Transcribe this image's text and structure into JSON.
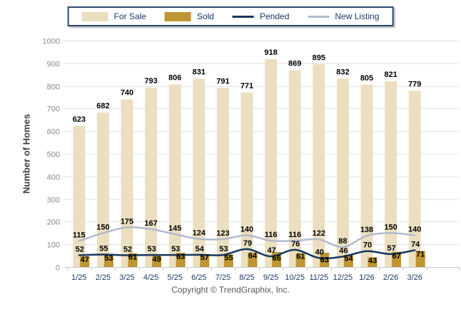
{
  "page": {
    "copyright": "Copyright © TrendGraphix, Inc."
  },
  "colors": {
    "for_sale": "#EBDFC0",
    "sold": "#BD9533",
    "pended": "#17375E",
    "new_listing": "#B2BACA",
    "legend_border": "#2B4A72",
    "legend_text": "#17375E",
    "grid": "#E3E3E3",
    "axis_line": "#C9C9C9",
    "x_tick_text": "#1F3864",
    "y_tick_text": "#8A8A8A"
  },
  "legend": {
    "items": [
      {
        "label": "For Sale",
        "kind": "bar",
        "color": "#EBDFC0"
      },
      {
        "label": "Sold",
        "kind": "bar",
        "color": "#BD9533"
      },
      {
        "label": "Pended",
        "kind": "line",
        "color": "#17375E"
      },
      {
        "label": "New Listing",
        "kind": "line",
        "color": "#B2BACA"
      }
    ]
  },
  "chart_data": {
    "type": "bar",
    "subtype": "grouped bars with smoothed overlay lines",
    "title": "",
    "xlabel": "",
    "ylabel": "Number of Homes",
    "ylim": [
      0,
      1000
    ],
    "ytick_step": 100,
    "grid": true,
    "legend_position": "top-center",
    "categories": [
      "1/25",
      "2/25",
      "3/25",
      "4/25",
      "5/25",
      "6/25",
      "7/25",
      "8/25",
      "9/25",
      "10/25",
      "11/25",
      "12/25",
      "1/26",
      "2/26",
      "3/26"
    ],
    "series": [
      {
        "name": "For Sale",
        "type": "bar",
        "color": "#EBDFC0",
        "values": [
          623,
          682,
          740,
          793,
          806,
          831,
          791,
          771,
          918,
          869,
          895,
          832,
          805,
          821,
          779
        ]
      },
      {
        "name": "Sold",
        "type": "bar",
        "color": "#BD9533",
        "values": [
          47,
          53,
          61,
          49,
          63,
          57,
          55,
          64,
          66,
          61,
          63,
          54,
          43,
          67,
          71
        ]
      },
      {
        "name": "Pended",
        "type": "line",
        "color": "#17375E",
        "values": [
          52,
          55,
          52,
          53,
          53,
          54,
          53,
          79,
          47,
          76,
          40,
          46,
          70,
          57,
          74
        ]
      },
      {
        "name": "New Listing",
        "type": "line",
        "color": "#B2BACA",
        "values": [
          115,
          150,
          175,
          167,
          145,
          124,
          123,
          140,
          116,
          116,
          122,
          88,
          138,
          150,
          140
        ]
      }
    ]
  }
}
